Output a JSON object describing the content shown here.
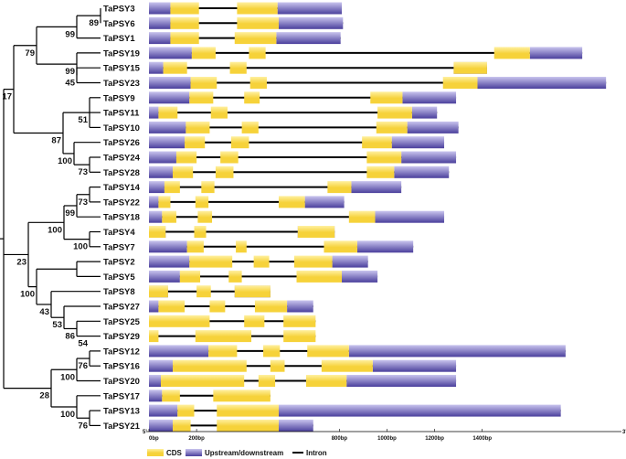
{
  "colors": {
    "cds": "#f6d23a",
    "cds_light": "#fff0a0",
    "utr": "#4a3f9c",
    "utr_light": "#c9c4ee",
    "intron": "#000000",
    "tree": "#000000"
  },
  "axis": {
    "min": 0,
    "max": 2000,
    "ticks": [
      {
        "value": 0,
        "label": "0bp"
      },
      {
        "value": 200,
        "label": "200bp"
      },
      {
        "value": 800,
        "label": "800bp"
      },
      {
        "value": 1000,
        "label": "1000bp"
      },
      {
        "value": 1200,
        "label": "1200bp"
      },
      {
        "value": 1400,
        "label": "1400bp"
      }
    ],
    "five_prime": "5'",
    "three_prime": "3'"
  },
  "legend": {
    "cds": "CDS",
    "utr": "Upstream/downstream",
    "intron": "Intron"
  },
  "genes": [
    {
      "name": "TaPSY3",
      "length": 810,
      "utr": [
        [
          0,
          90
        ],
        [
          540,
          810
        ]
      ],
      "cds": [
        [
          90,
          210
        ],
        [
          370,
          540
        ]
      ]
    },
    {
      "name": "TaPSY6",
      "length": 815,
      "utr": [
        [
          0,
          90
        ],
        [
          545,
          815
        ]
      ],
      "cds": [
        [
          90,
          210
        ],
        [
          370,
          545
        ]
      ]
    },
    {
      "name": "TaPSY1",
      "length": 805,
      "utr": [
        [
          0,
          90
        ],
        [
          535,
          805
        ]
      ],
      "cds": [
        [
          90,
          210
        ],
        [
          360,
          535
        ]
      ]
    },
    {
      "name": "TaPSY19",
      "length": 1820,
      "utr": [
        [
          0,
          180
        ],
        [
          1600,
          1820
        ]
      ],
      "cds": [
        [
          180,
          280
        ],
        [
          420,
          490
        ],
        [
          1450,
          1600
        ]
      ]
    },
    {
      "name": "TaPSY15",
      "length": 1420,
      "utr": [
        [
          0,
          60
        ],
        [
          1280,
          1420
        ]
      ],
      "cds": [
        [
          60,
          160
        ],
        [
          340,
          410
        ],
        [
          1280,
          1420
        ]
      ]
    },
    {
      "name": "TaPSY23",
      "length": 1920,
      "utr": [
        [
          0,
          175
        ],
        [
          1380,
          1920
        ]
      ],
      "cds": [
        [
          175,
          285
        ],
        [
          425,
          495
        ],
        [
          1235,
          1380
        ]
      ]
    },
    {
      "name": "TaPSY9",
      "length": 1290,
      "utr": [
        [
          0,
          170
        ],
        [
          1065,
          1290
        ]
      ],
      "cds": [
        [
          170,
          270
        ],
        [
          400,
          465
        ],
        [
          930,
          1065
        ]
      ]
    },
    {
      "name": "TaPSY11",
      "length": 1210,
      "utr": [
        [
          0,
          40
        ],
        [
          1105,
          1210
        ]
      ],
      "cds": [
        [
          40,
          120
        ],
        [
          260,
          330
        ],
        [
          960,
          1105
        ]
      ]
    },
    {
      "name": "TaPSY10",
      "length": 1300,
      "utr": [
        [
          0,
          155
        ],
        [
          1085,
          1300
        ]
      ],
      "cds": [
        [
          155,
          255
        ],
        [
          390,
          460
        ],
        [
          955,
          1085
        ]
      ]
    },
    {
      "name": "TaPSY26",
      "length": 1240,
      "utr": [
        [
          0,
          150
        ],
        [
          1020,
          1240
        ]
      ],
      "cds": [
        [
          150,
          235
        ],
        [
          345,
          420
        ],
        [
          895,
          1020
        ]
      ]
    },
    {
      "name": "TaPSY24",
      "length": 1290,
      "utr": [
        [
          0,
          115
        ],
        [
          1060,
          1290
        ]
      ],
      "cds": [
        [
          115,
          200
        ],
        [
          300,
          375
        ],
        [
          915,
          1060
        ]
      ]
    },
    {
      "name": "TaPSY28",
      "length": 1260,
      "utr": [
        [
          0,
          100
        ],
        [
          1030,
          1260
        ]
      ],
      "cds": [
        [
          100,
          185
        ],
        [
          280,
          355
        ],
        [
          915,
          1030
        ]
      ]
    },
    {
      "name": "TaPSY14",
      "length": 1060,
      "utr": [
        [
          0,
          65
        ],
        [
          850,
          1060
        ]
      ],
      "cds": [
        [
          65,
          130
        ],
        [
          220,
          275
        ],
        [
          750,
          850
        ]
      ]
    },
    {
      "name": "TaPSY22",
      "length": 820,
      "utr": [
        [
          0,
          40
        ],
        [
          655,
          820
        ]
      ],
      "cds": [
        [
          40,
          90
        ],
        [
          195,
          250
        ],
        [
          545,
          655
        ]
      ]
    },
    {
      "name": "TaPSY18",
      "length": 1240,
      "utr": [
        [
          0,
          55
        ],
        [
          950,
          1240
        ]
      ],
      "cds": [
        [
          55,
          115
        ],
        [
          205,
          265
        ],
        [
          840,
          950
        ]
      ]
    },
    {
      "name": "TaPSY4",
      "length": 780,
      "utr": [
        [
          0,
          70
        ],
        [
          625,
          780
        ]
      ],
      "cds": [
        [
          0,
          70
        ],
        [
          190,
          240
        ],
        [
          625,
          780
        ]
      ]
    },
    {
      "name": "TaPSY7",
      "length": 1110,
      "utr": [
        [
          0,
          160
        ],
        [
          875,
          1110
        ]
      ],
      "cds": [
        [
          160,
          230
        ],
        [
          365,
          410
        ],
        [
          735,
          875
        ]
      ]
    },
    {
      "name": "TaPSY2",
      "length": 920,
      "utr": [
        [
          0,
          170
        ],
        [
          770,
          920
        ]
      ],
      "cds": [
        [
          170,
          350
        ],
        [
          440,
          505
        ],
        [
          610,
          770
        ]
      ]
    },
    {
      "name": "TaPSY5",
      "length": 960,
      "utr": [
        [
          0,
          130
        ],
        [
          810,
          960
        ]
      ],
      "cds": [
        [
          130,
          215
        ],
        [
          335,
          390
        ],
        [
          620,
          810
        ]
      ]
    },
    {
      "name": "TaPSY8",
      "length": 510,
      "utr": [
        [
          0,
          80
        ],
        [
          360,
          510
        ]
      ],
      "cds": [
        [
          0,
          80
        ],
        [
          200,
          260
        ],
        [
          360,
          510
        ]
      ]
    },
    {
      "name": "TaPSY27",
      "length": 690,
      "utr": [
        [
          0,
          40
        ],
        [
          580,
          690
        ]
      ],
      "cds": [
        [
          40,
          150
        ],
        [
          255,
          320
        ],
        [
          445,
          580
        ]
      ]
    },
    {
      "name": "TaPSY25",
      "length": 700,
      "utr": [],
      "cds": [
        [
          0,
          255
        ],
        [
          400,
          485
        ],
        [
          565,
          700
        ]
      ]
    },
    {
      "name": "TaPSY29",
      "length": 700,
      "utr": [],
      "cds": [
        [
          0,
          40
        ],
        [
          195,
          430
        ],
        [
          565,
          700
        ]
      ]
    },
    {
      "name": "TaPSY12",
      "length": 1750,
      "utr": [
        [
          0,
          250
        ],
        [
          840,
          1750
        ]
      ],
      "cds": [
        [
          250,
          370
        ],
        [
          480,
          550
        ],
        [
          665,
          840
        ]
      ]
    },
    {
      "name": "TaPSY16",
      "length": 1290,
      "utr": [
        [
          0,
          100
        ],
        [
          940,
          1290
        ]
      ],
      "cds": [
        [
          100,
          410
        ],
        [
          510,
          570
        ],
        [
          725,
          940
        ]
      ]
    },
    {
      "name": "TaPSY20",
      "length": 1290,
      "utr": [
        [
          0,
          50
        ],
        [
          830,
          1290
        ]
      ],
      "cds": [
        [
          50,
          400
        ],
        [
          460,
          530
        ],
        [
          660,
          830
        ]
      ]
    },
    {
      "name": "TaPSY17",
      "length": 510,
      "utr": [
        [
          0,
          55
        ]
      ],
      "cds": [
        [
          55,
          130
        ],
        [
          270,
          510
        ]
      ]
    },
    {
      "name": "TaPSY13",
      "length": 1730,
      "utr": [
        [
          0,
          120
        ],
        [
          545,
          1730
        ]
      ],
      "cds": [
        [
          120,
          190
        ],
        [
          285,
          545
        ]
      ]
    },
    {
      "name": "TaPSY21",
      "length": 690,
      "utr": [
        [
          0,
          100
        ],
        [
          545,
          690
        ]
      ],
      "cds": [
        [
          100,
          175
        ],
        [
          285,
          545
        ]
      ]
    }
  ],
  "tree": {
    "name": "root",
    "x": 4,
    "children": [
      {
        "name": "n17",
        "x": 15,
        "support": "17",
        "children": [
          {
            "name": "n79",
            "x": 40,
            "support": "79",
            "children": [
              {
                "name": "n99a",
                "x": 84,
                "support": "99",
                "children": [
                  {
                    "name": "n89",
                    "x": 110,
                    "support": "89",
                    "children": [
                      {
                        "leaf": 0
                      },
                      {
                        "leaf": 1
                      }
                    ]
                  },
                  {
                    "leaf": 2
                  }
                ]
              },
              {
                "name": "n99b",
                "x": 84,
                "support": "99",
                "children": [
                  {
                    "leaf": 3
                  },
                  {
                    "name": "n45",
                    "x": 84,
                    "support": "45",
                    "children": [
                      {
                        "leaf": 4
                      },
                      {
                        "leaf": 5
                      }
                    ]
                  }
                ]
              }
            ]
          },
          {
            "name": "n87",
            "x": 69,
            "support": "87",
            "children": [
              {
                "name": "n51",
                "x": 98,
                "support": "51",
                "children": [
                  {
                    "leaf": 6
                  },
                  {
                    "leaf": 7
                  },
                  {
                    "leaf": 8
                  }
                ]
              },
              {
                "name": "n100a",
                "x": 81,
                "support": "100",
                "children": [
                  {
                    "leaf": 9
                  },
                  {
                    "name": "n73a",
                    "x": 98,
                    "support": "73",
                    "children": [
                      {
                        "leaf": 10
                      },
                      {
                        "leaf": 11
                      }
                    ]
                  }
                ]
              }
            ]
          }
        ]
      },
      {
        "name": "n23",
        "x": 31,
        "support": "23",
        "children": [
          {
            "name": "n100b",
            "x": 70,
            "support": "100",
            "children": [
              {
                "name": "n99c",
                "x": 84,
                "support": "99",
                "children": [
                  {
                    "name": "n73b",
                    "x": 98,
                    "support": "73",
                    "children": [
                      {
                        "leaf": 12
                      },
                      {
                        "leaf": 13
                      }
                    ]
                  },
                  {
                    "leaf": 14
                  }
                ]
              },
              {
                "name": "n100c",
                "x": 98,
                "support": "100",
                "children": [
                  {
                    "leaf": 15
                  },
                  {
                    "leaf": 16
                  }
                ]
              }
            ]
          },
          {
            "name": "n100d",
            "x": 40,
            "support": "100",
            "children": [
              {
                "name": "n100e",
                "x": 84,
                "support": "",
                "children": [
                  {
                    "leaf": 17
                  },
                  {
                    "leaf": 18
                  }
                ]
              },
              {
                "name": "n43",
                "x": 56,
                "support": "43",
                "children": [
                  {
                    "leaf": 19
                  },
                  {
                    "name": "n53",
                    "x": 70,
                    "support": "53",
                    "children": [
                      {
                        "leaf": 20
                      },
                      {
                        "name": "n86",
                        "x": 84,
                        "support": "86",
                        "children": [
                          {
                            "leaf": 21
                          },
                          {
                            "name": "n54",
                            "x": 98,
                            "support": "54",
                            "children": [
                              {
                                "leaf": 22
                              }
                            ]
                          }
                        ]
                      }
                    ]
                  }
                ]
              }
            ]
          }
        ]
      },
      {
        "name": "n28",
        "x": 56,
        "support": "28",
        "children": [
          {
            "name": "n100f",
            "x": 84,
            "support": "100",
            "children": [
              {
                "name": "n76a",
                "x": 98,
                "support": "76",
                "children": [
                  {
                    "leaf": 23
                  },
                  {
                    "leaf": 24
                  }
                ]
              },
              {
                "leaf": 25
              }
            ]
          },
          {
            "name": "n100g",
            "x": 84,
            "support": "100",
            "children": [
              {
                "leaf": 26
              },
              {
                "name": "n76b",
                "x": 98,
                "support": "76",
                "children": [
                  {
                    "leaf": 27
                  },
                  {
                    "leaf": 28
                  }
                ]
              }
            ]
          }
        ]
      }
    ]
  }
}
